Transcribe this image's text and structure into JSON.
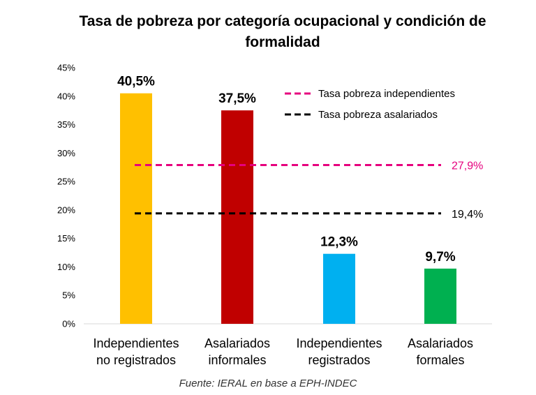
{
  "chart_data": {
    "type": "bar",
    "title": "Tasa de pobreza por categoría ocupacional y condición de formalidad",
    "categories": [
      [
        "Independientes",
        "no registrados"
      ],
      [
        "Asalariados",
        "informales"
      ],
      [
        "Independientes",
        "registrados"
      ],
      [
        "Asalariados",
        "formales"
      ]
    ],
    "values": [
      40.5,
      37.5,
      12.3,
      9.7
    ],
    "value_labels": [
      "40,5%",
      "37,5%",
      "12,3%",
      "9,7%"
    ],
    "bar_colors": [
      "#FFC000",
      "#C00000",
      "#00B0F0",
      "#00B050"
    ],
    "ylim": [
      0,
      45
    ],
    "yticks": [
      0,
      5,
      10,
      15,
      20,
      25,
      30,
      35,
      40,
      45
    ],
    "ytick_labels": [
      "0%",
      "5%",
      "10%",
      "15%",
      "20%",
      "25%",
      "30%",
      "35%",
      "40%",
      "45%"
    ],
    "xlabel": "",
    "ylabel": "",
    "grid": false,
    "legend_position": "top-right",
    "reference_lines": [
      {
        "name": "Tasa pobreza independientes",
        "value": 27.9,
        "label": "27,9%",
        "color": "#E6007E"
      },
      {
        "name": "Tasa pobreza asalariados",
        "value": 19.4,
        "label": "19,4%",
        "color": "#000000"
      }
    ]
  },
  "source": "Fuente: IERAL en base a EPH-INDEC"
}
